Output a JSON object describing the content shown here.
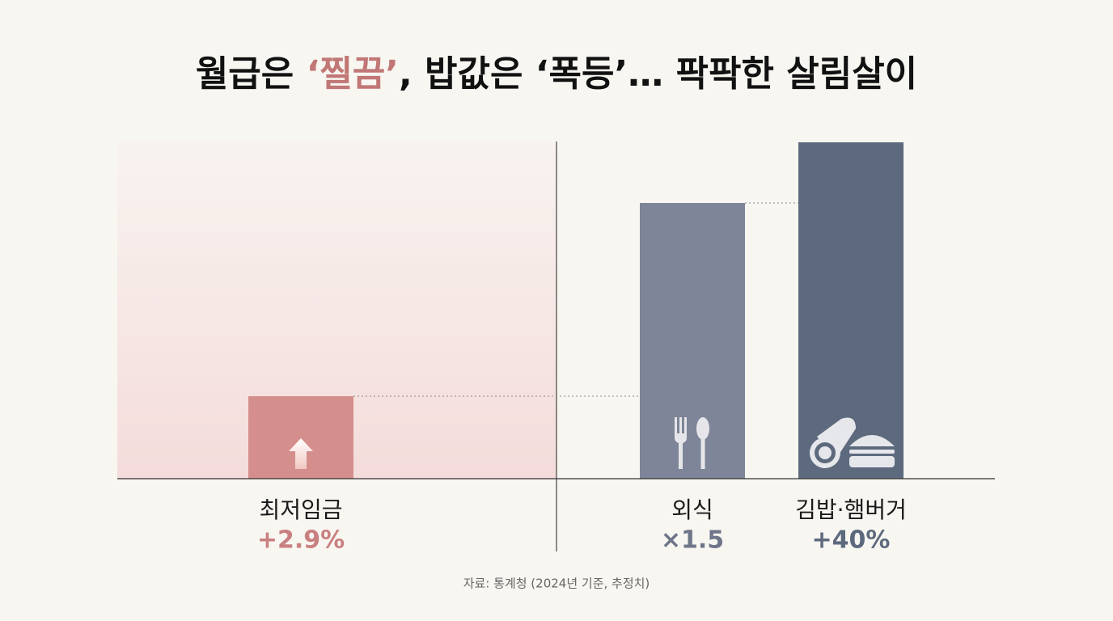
{
  "title": {
    "parts": [
      "월급은 ",
      "‘찔끔’",
      ", 밥값은 ‘폭등’… 팍팍한 살림살이"
    ]
  },
  "items": [
    {
      "label": "최저임금",
      "change": "+2.9%"
    },
    {
      "label": "외식",
      "change": "×1.5"
    },
    {
      "label": "김밥·햄버거",
      "change": "+40%"
    }
  ],
  "source": "자료: 통계청 (2024년 기준, 추정치)"
}
